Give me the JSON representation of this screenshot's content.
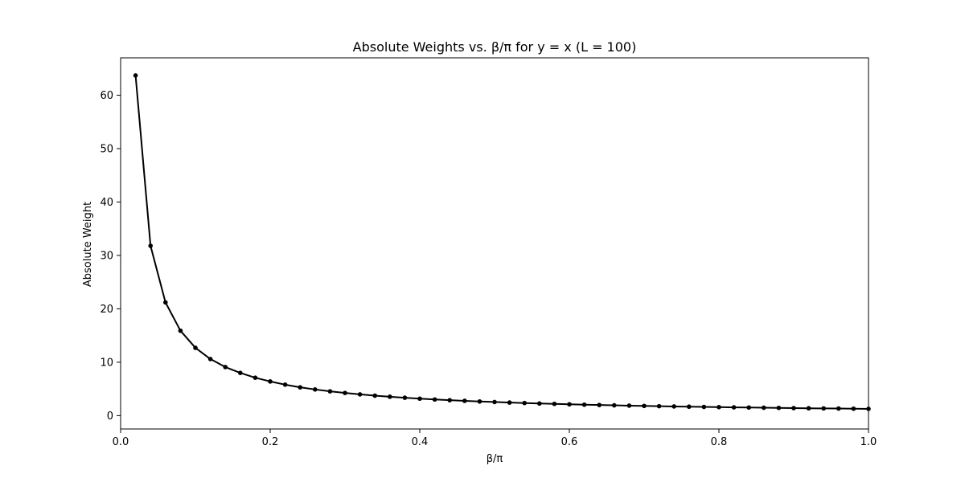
{
  "chart_data": {
    "type": "line",
    "title": "Absolute Weights vs. β/π for y = x (L = 100)",
    "xlabel": "β/π",
    "ylabel": "Absolute Weight",
    "xlim": [
      0.0,
      1.0
    ],
    "ylim": [
      -2.5,
      67.0
    ],
    "grid": false,
    "x_ticks": [
      {
        "value": 0.0,
        "label": "0.0"
      },
      {
        "value": 0.2,
        "label": "0.2"
      },
      {
        "value": 0.4,
        "label": "0.4"
      },
      {
        "value": 0.6,
        "label": "0.6"
      },
      {
        "value": 0.8,
        "label": "0.8"
      },
      {
        "value": 1.0,
        "label": "1.0"
      }
    ],
    "y_ticks": [
      {
        "value": 0,
        "label": "0"
      },
      {
        "value": 10,
        "label": "10"
      },
      {
        "value": 20,
        "label": "20"
      },
      {
        "value": 30,
        "label": "30"
      },
      {
        "value": 40,
        "label": "40"
      },
      {
        "value": 50,
        "label": "50"
      },
      {
        "value": 60,
        "label": "60"
      }
    ],
    "series": [
      {
        "color": "#000000",
        "marker": "circle",
        "x": [
          0.02,
          0.04,
          0.06,
          0.08,
          0.1,
          0.12,
          0.14,
          0.16,
          0.18,
          0.2,
          0.22,
          0.24,
          0.26,
          0.28,
          0.3,
          0.32,
          0.34,
          0.36,
          0.38,
          0.4,
          0.42,
          0.44,
          0.46,
          0.48,
          0.5,
          0.52,
          0.54,
          0.56,
          0.58,
          0.6,
          0.62,
          0.64,
          0.66,
          0.68,
          0.7,
          0.72,
          0.74,
          0.76,
          0.78,
          0.8,
          0.82,
          0.84,
          0.86,
          0.88,
          0.9,
          0.92,
          0.94,
          0.96,
          0.98,
          1.0
        ],
        "y": [
          63.7,
          31.8,
          21.2,
          15.9,
          12.7,
          10.6,
          9.1,
          8.0,
          7.1,
          6.4,
          5.8,
          5.3,
          4.9,
          4.55,
          4.25,
          3.98,
          3.74,
          3.54,
          3.35,
          3.18,
          3.03,
          2.89,
          2.77,
          2.65,
          2.55,
          2.45,
          2.36,
          2.27,
          2.2,
          2.12,
          2.05,
          1.99,
          1.93,
          1.87,
          1.82,
          1.77,
          1.72,
          1.68,
          1.63,
          1.59,
          1.55,
          1.52,
          1.48,
          1.45,
          1.41,
          1.38,
          1.35,
          1.33,
          1.3,
          1.27
        ]
      }
    ]
  }
}
